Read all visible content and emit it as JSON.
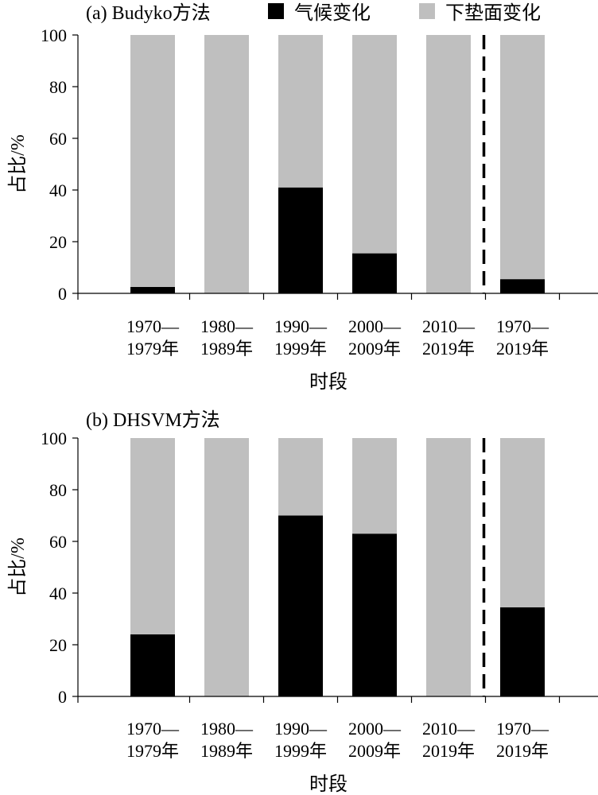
{
  "legend": {
    "items": [
      {
        "label": "气候变化",
        "color": "#000000"
      },
      {
        "label": "下垫面变化",
        "color": "#bfbfbf"
      }
    ]
  },
  "chart_data": [
    {
      "type": "bar",
      "stacked": true,
      "panel_label": "(a) Budyko方法",
      "categories": [
        [
          "1970—",
          "1979年"
        ],
        [
          "1980—",
          "1989年"
        ],
        [
          "1990—",
          "1999年"
        ],
        [
          "2000—",
          "2009年"
        ],
        [
          "2010—",
          "2019年"
        ],
        [
          "1970—",
          "2019年"
        ]
      ],
      "series": [
        {
          "name": "气候变化",
          "color": "#000000",
          "values": [
            2.5,
            0,
            41,
            15.5,
            0,
            5.5
          ]
        },
        {
          "name": "下垫面变化",
          "color": "#bfbfbf",
          "values": [
            97.5,
            100,
            59,
            84.5,
            100,
            94.5
          ]
        }
      ],
      "xlabel": "时段",
      "ylabel": "占比/%",
      "ylim": [
        0,
        100
      ],
      "yticks": [
        0,
        20,
        40,
        60,
        80,
        100
      ],
      "separator_after_index": 4
    },
    {
      "type": "bar",
      "stacked": true,
      "panel_label": "(b) DHSVM方法",
      "categories": [
        [
          "1970—",
          "1979年"
        ],
        [
          "1980—",
          "1989年"
        ],
        [
          "1990—",
          "1999年"
        ],
        [
          "2000—",
          "2009年"
        ],
        [
          "2010—",
          "2019年"
        ],
        [
          "1970—",
          "2019年"
        ]
      ],
      "series": [
        {
          "name": "气候变化",
          "color": "#000000",
          "values": [
            24,
            0,
            70,
            63,
            0,
            34.5
          ]
        },
        {
          "name": "下垫面变化",
          "color": "#bfbfbf",
          "values": [
            76,
            100,
            30,
            37,
            100,
            65.5
          ]
        }
      ],
      "xlabel": "时段",
      "ylabel": "占比/%",
      "ylim": [
        0,
        100
      ],
      "yticks": [
        0,
        20,
        40,
        60,
        80,
        100
      ],
      "separator_after_index": 4
    }
  ]
}
